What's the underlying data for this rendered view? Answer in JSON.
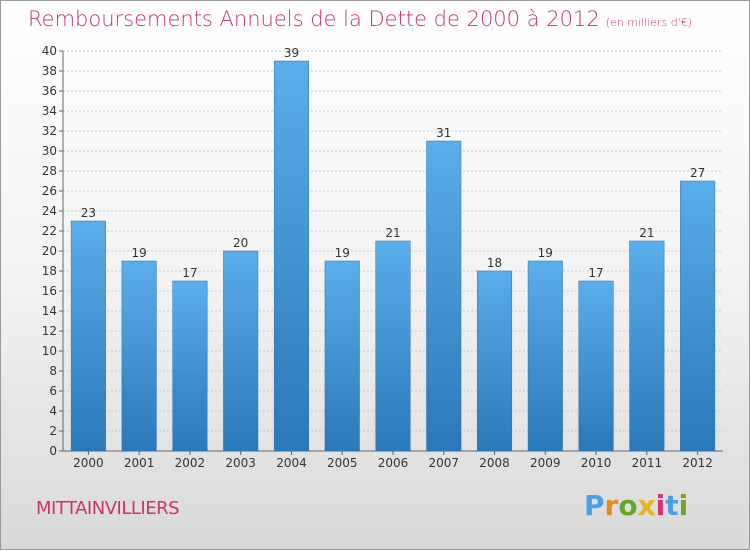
{
  "title": "Remboursements Annuels de la Dette de 2000 à 2012",
  "unit": "(en milliers d'€)",
  "commune": "MITTAINVILLIERS",
  "logo": {
    "text": "Proxiti",
    "letters": [
      "P",
      "r",
      "o",
      "x",
      "i",
      "t",
      "i"
    ]
  },
  "colors": {
    "title": "#c8336e",
    "bar_light": "#5aaeea",
    "bar_dark": "#2a78b8",
    "grid": "#c8c8c8"
  },
  "chart_data": {
    "type": "bar",
    "categories": [
      "2000",
      "2001",
      "2002",
      "2003",
      "2004",
      "2005",
      "2006",
      "2007",
      "2008",
      "2009",
      "2010",
      "2011",
      "2012"
    ],
    "values": [
      23,
      19,
      17,
      20,
      39,
      19,
      21,
      31,
      18,
      19,
      17,
      21,
      27
    ],
    "ylim": [
      0,
      40
    ],
    "yticks": [
      0,
      2,
      4,
      6,
      8,
      10,
      12,
      14,
      16,
      18,
      20,
      22,
      24,
      26,
      28,
      30,
      32,
      34,
      36,
      38,
      40
    ],
    "grid": true,
    "data_labels": true
  }
}
